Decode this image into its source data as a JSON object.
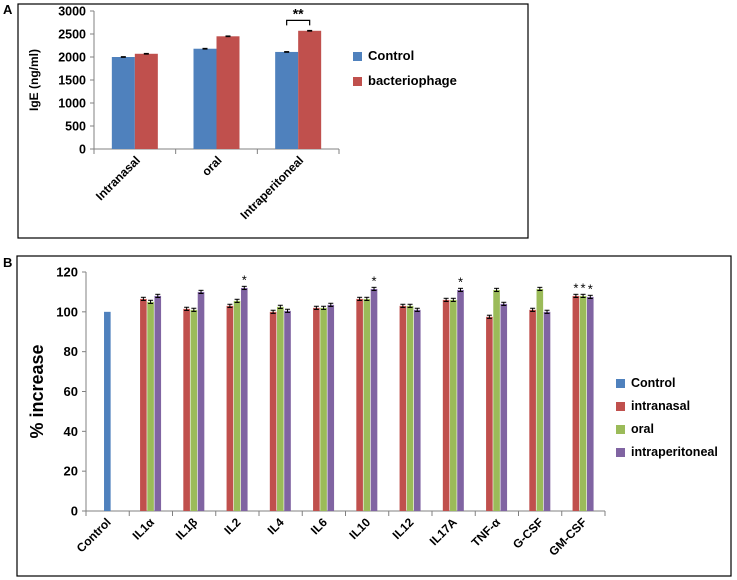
{
  "colors": {
    "control": "#4f81bd",
    "intranasal": "#c0504d",
    "oral": "#9bbb59",
    "intraperitoneal": "#8064a2",
    "axis": "#808080",
    "error_bar": "#000000"
  },
  "chart_data": [
    {
      "panel_label": "A",
      "type": "bar",
      "title": "",
      "xlabel": "",
      "ylabel": "IgE (ng/ml)",
      "ylim": [
        0,
        3000
      ],
      "yticks": [
        0,
        500,
        1000,
        1500,
        2000,
        2500,
        3000
      ],
      "ytick_labels": [
        "0",
        "500",
        "1000",
        "1500",
        "2000",
        "2500",
        "3000"
      ],
      "categories": [
        "Intranasal",
        "oral",
        "Intraperitoneal"
      ],
      "series": [
        {
          "name": "Control",
          "color_key": "control",
          "values": [
            2000,
            2180,
            2110
          ],
          "errors": [
            8,
            8,
            8
          ]
        },
        {
          "name": "bacteriophage",
          "color_key": "intranasal",
          "values": [
            2070,
            2450,
            2570
          ],
          "errors": [
            8,
            8,
            8
          ]
        }
      ],
      "significance": [
        {
          "category_index": 2,
          "label": "**"
        }
      ],
      "legend_position": "right"
    },
    {
      "panel_label": "B",
      "type": "bar",
      "title": "",
      "xlabel": "",
      "ylabel": "% increase",
      "ylim": [
        0,
        120
      ],
      "yticks": [
        0,
        20,
        40,
        60,
        80,
        100,
        120
      ],
      "ytick_labels": [
        "0",
        "20",
        "40",
        "60",
        "80",
        "100",
        "120"
      ],
      "categories": [
        "Control",
        "IL1α",
        "IL1β",
        "IL2",
        "IL4",
        "IL6",
        "IL10",
        "IL12",
        "IL17A",
        "TNF-α",
        "G-CSF",
        "GM-CSF"
      ],
      "series": [
        {
          "name": "Control",
          "color_key": "control",
          "values": [
            100,
            null,
            null,
            null,
            null,
            null,
            null,
            null,
            null,
            null,
            null,
            null
          ],
          "errors": [
            0,
            0,
            0,
            0,
            0,
            0,
            0,
            0,
            0,
            0,
            0,
            0
          ]
        },
        {
          "name": "intranasal",
          "color_key": "intranasal",
          "values": [
            null,
            106.5,
            101.5,
            103,
            100,
            102,
            106.5,
            103,
            106,
            97.5,
            101,
            108
          ],
          "errors": [
            0,
            0.8,
            0.8,
            0.8,
            0.8,
            0.8,
            0.8,
            0.8,
            0.8,
            0.8,
            0.8,
            0.8
          ]
        },
        {
          "name": "oral",
          "color_key": "oral",
          "values": [
            null,
            105,
            101,
            105.5,
            102.5,
            102,
            106.5,
            103,
            106,
            111,
            111.5,
            108
          ],
          "errors": [
            0,
            0.8,
            0.8,
            0.8,
            0.8,
            0.8,
            0.8,
            0.8,
            0.8,
            0.8,
            0.8,
            0.8
          ]
        },
        {
          "name": "intraperitoneal",
          "color_key": "intraperitoneal",
          "values": [
            null,
            108,
            110,
            112,
            100.5,
            103.5,
            111.5,
            101,
            111,
            104,
            100,
            107.5
          ],
          "errors": [
            0,
            0.8,
            0.8,
            0.8,
            0.8,
            0.8,
            0.8,
            0.8,
            0.8,
            0.8,
            0.8,
            0.8
          ]
        }
      ],
      "significance": [
        {
          "category_index": 3,
          "series_index": 3,
          "label": "*"
        },
        {
          "category_index": 6,
          "series_index": 3,
          "label": "*"
        },
        {
          "category_index": 8,
          "series_index": 3,
          "label": "*"
        },
        {
          "category_index": 11,
          "series_index": 1,
          "label": "*"
        },
        {
          "category_index": 11,
          "series_index": 2,
          "label": "*"
        },
        {
          "category_index": 11,
          "series_index": 3,
          "label": "*"
        }
      ],
      "legend_position": "right"
    }
  ]
}
